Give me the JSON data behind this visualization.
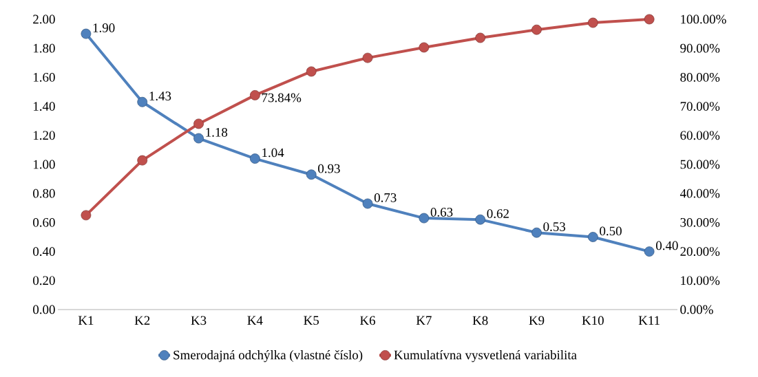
{
  "chart_data": {
    "type": "line",
    "categories": [
      "K1",
      "K2",
      "K3",
      "K4",
      "K5",
      "K6",
      "K7",
      "K8",
      "K9",
      "K10",
      "K11"
    ],
    "series": [
      {
        "name": "Smerodajná odchýlka (vlastné číslo)",
        "color": "#4f81bd",
        "values": [
          1.9,
          1.43,
          1.18,
          1.04,
          0.93,
          0.73,
          0.63,
          0.62,
          0.53,
          0.5,
          0.4
        ],
        "value_labels": [
          "1.90",
          "1.43",
          "1.18",
          "1.04",
          "0.93",
          "0.73",
          "0.63",
          "0.62",
          "0.53",
          "0.50",
          "0.40"
        ]
      },
      {
        "name": "Kumulatívna vysvetlená variabilita",
        "color": "#c0504d",
        "axis": "y2",
        "values": [
          32.5,
          51.4,
          64.0,
          73.84,
          82.0,
          86.7,
          90.3,
          93.6,
          96.4,
          98.8,
          100
        ],
        "value_labels": [
          null,
          null,
          null,
          "73.84%",
          null,
          null,
          null,
          null,
          null,
          null,
          null
        ]
      }
    ],
    "ylim": [
      0,
      2
    ],
    "yticks": [
      {
        "value": 0,
        "label": "0.00"
      },
      {
        "value": 0.2,
        "label": "0.20"
      },
      {
        "value": 0.4,
        "label": "0.40"
      },
      {
        "value": 0.6,
        "label": "0.60"
      },
      {
        "value": 0.8,
        "label": "0.80"
      },
      {
        "value": 1.0,
        "label": "1.00"
      },
      {
        "value": 1.2,
        "label": "1.20"
      },
      {
        "value": 1.4,
        "label": "1.40"
      },
      {
        "value": 1.6,
        "label": "1.60"
      },
      {
        "value": 1.8,
        "label": "1.80"
      },
      {
        "value": 2.0,
        "label": "2.00"
      }
    ],
    "y2lim": [
      0,
      100
    ],
    "y2ticks": [
      {
        "value": 0,
        "label": "0.00%"
      },
      {
        "value": 10,
        "label": "10.00%"
      },
      {
        "value": 20,
        "label": "20.00%"
      },
      {
        "value": 30,
        "label": "30.00%"
      },
      {
        "value": 40,
        "label": "40.00%"
      },
      {
        "value": 50,
        "label": "50.00%"
      },
      {
        "value": 60,
        "label": "60.00%"
      },
      {
        "value": 70,
        "label": "70.00%"
      },
      {
        "value": 80,
        "label": "80.00%"
      },
      {
        "value": 90,
        "label": "90.00%"
      },
      {
        "value": 100,
        "label": "100.00%"
      }
    ],
    "marker": "circle",
    "legend": "bottom",
    "grid": false
  }
}
